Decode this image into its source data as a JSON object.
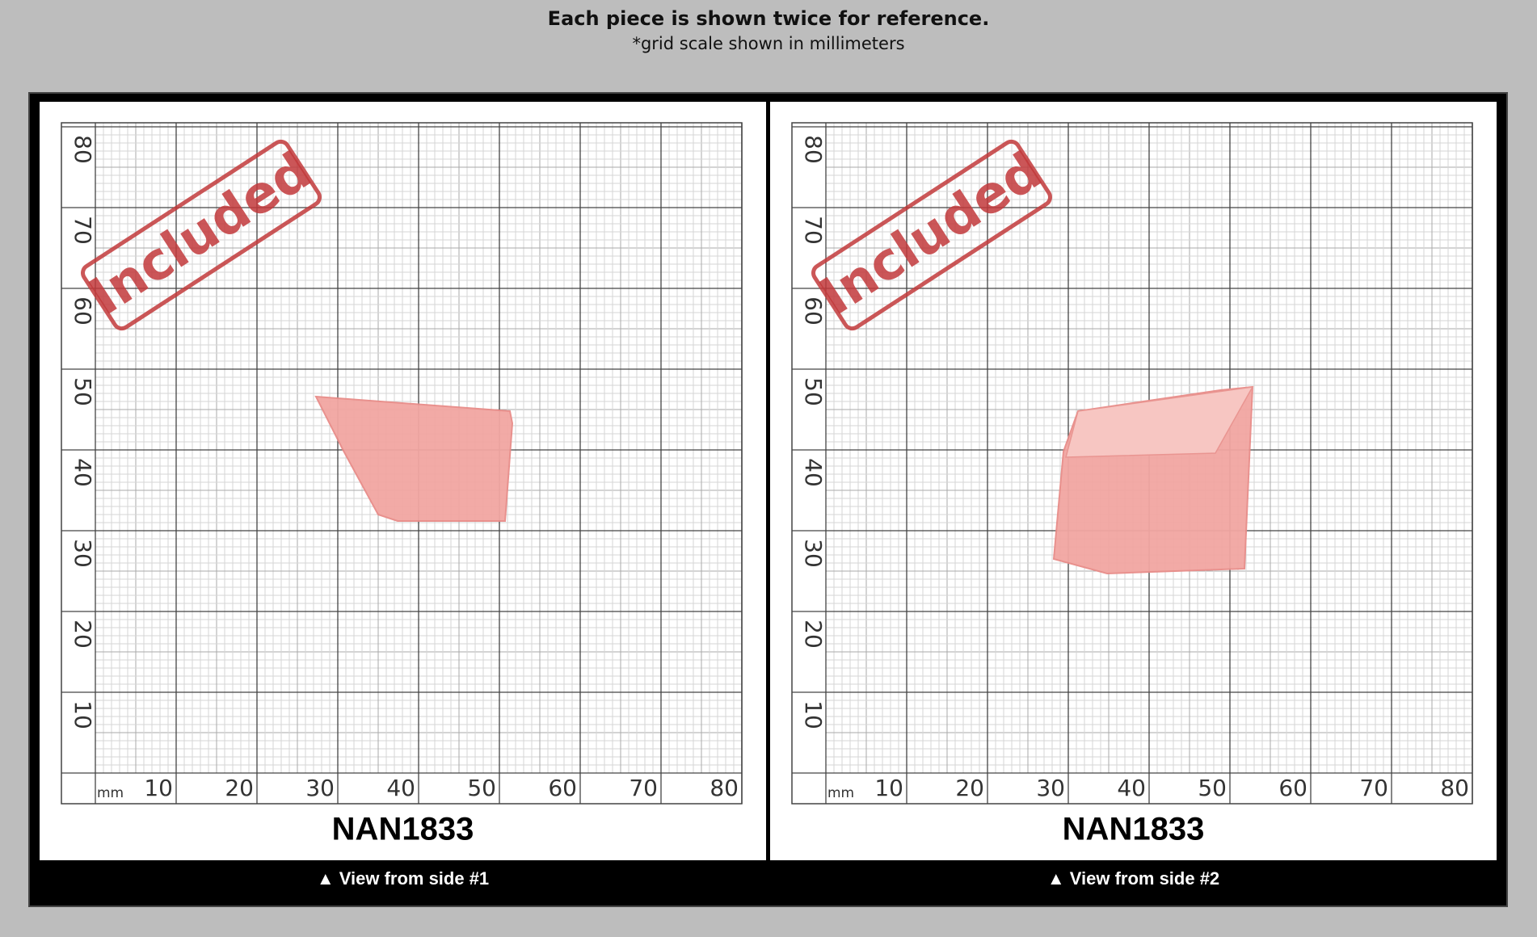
{
  "header": {
    "title": "Each piece is shown twice for reference.",
    "subtitle": "*grid scale shown in millimeters"
  },
  "panels": [
    {
      "y_labels": [
        80,
        70,
        60,
        50,
        40,
        30,
        20,
        10
      ],
      "x_labels": [
        10,
        20,
        30,
        40,
        50,
        60,
        70,
        80
      ],
      "unit": "mm",
      "stamp": "Included",
      "code": "NAN1833",
      "caption": "▲ View from side #1"
    },
    {
      "y_labels": [
        80,
        70,
        60,
        50,
        40,
        30,
        20,
        10
      ],
      "x_labels": [
        10,
        20,
        30,
        40,
        50,
        60,
        70,
        80
      ],
      "unit": "mm",
      "stamp": "Included",
      "code": "NAN1833",
      "caption": "▲ View from side #2"
    }
  ]
}
